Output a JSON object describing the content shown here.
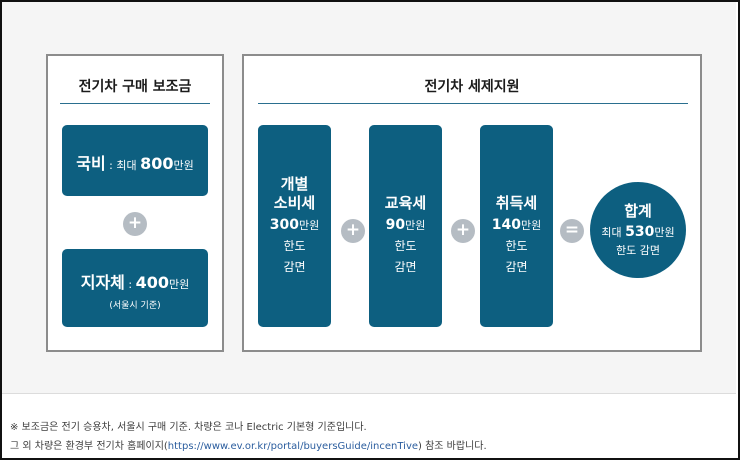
{
  "subsidy": {
    "title": "전기차 구매 보조금",
    "national": {
      "label": "국비",
      "sep": " : ",
      "prefix": "최대 ",
      "amount": "800",
      "unit": "만원"
    },
    "plus": "+",
    "local": {
      "label": "지자체",
      "sep": " : ",
      "amount": "400",
      "unit": "만원",
      "note": "(서울시 기준)"
    }
  },
  "tax": {
    "title": "전기차 세제지원",
    "items": [
      {
        "name_line1": "개별",
        "name_line2": "소비세",
        "amount": "300",
        "unit": "만원",
        "desc1": "한도",
        "desc2": "감면"
      },
      {
        "name_line1": "교육세",
        "amount": "90",
        "unit": "만원",
        "desc1": "한도",
        "desc2": "감면"
      },
      {
        "name_line1": "취득세",
        "amount": "140",
        "unit": "만원",
        "desc1": "한도",
        "desc2": "감면"
      }
    ],
    "plus": "+",
    "equals": "=",
    "total": {
      "label": "합계",
      "prefix": "최대 ",
      "amount": "530",
      "unit": "만원",
      "desc": "한도 감면"
    }
  },
  "footnotes": {
    "line1": "※ 보조금은 전기 승용차, 서울시 구매 기준. 차량은 코나 Electric 기본형 기준입니다.",
    "line2_before": "그 외 차량은 환경부 전기차 홈페이지(",
    "line2_link": "https://www.ev.or.kr/portal/buyersGuide/incenTive",
    "line2_after": ") 참조 바랍니다."
  },
  "colors": {
    "box": "#0d5f80",
    "plus_circle": "#b5bcc3",
    "rule": "#2a6f8f",
    "panel_border": "#8c8c8c"
  }
}
